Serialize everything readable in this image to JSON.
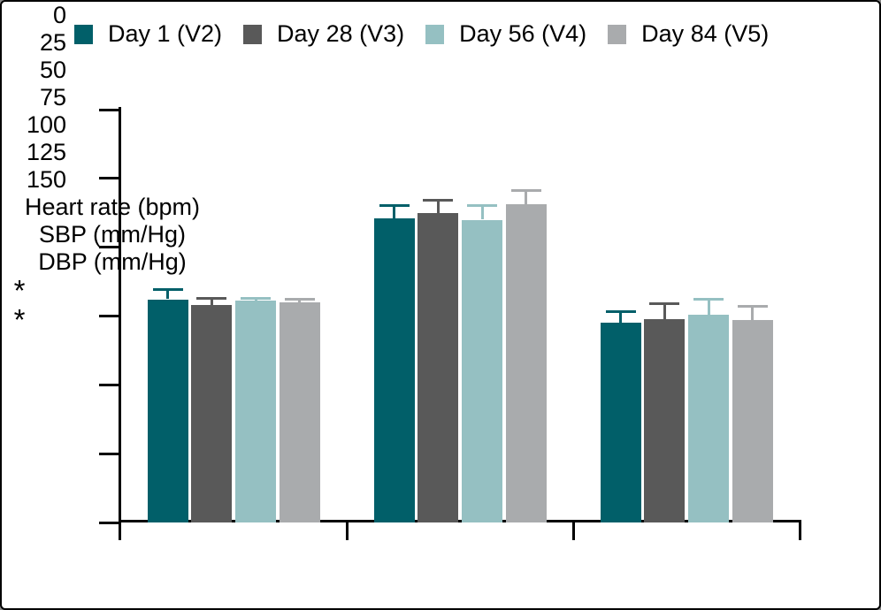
{
  "figure": {
    "background": "#ffffff",
    "border_color": "#000000"
  },
  "chart_data": {
    "type": "bar",
    "title": "",
    "xlabel": "",
    "ylabel": "",
    "categories": [
      "Heart rate (bpm)",
      "SBP (mm/Hg)",
      "DBP (mm/Hg)"
    ],
    "series": [
      {
        "name": "Day 1 (V2)",
        "color": "#015f69",
        "values": [
          81.0,
          110.5,
          72.5
        ],
        "errors_upper": [
          4.0,
          5.0,
          4.5
        ]
      },
      {
        "name": "Day 28 (V3)",
        "color": "#595959",
        "values": [
          79.0,
          112.5,
          74.0
        ],
        "errors_upper": [
          3.0,
          5.0,
          6.0
        ]
      },
      {
        "name": "Day 56 (V4)",
        "color": "#95c0c2",
        "values": [
          80.5,
          110.0,
          75.5
        ],
        "errors_upper": [
          1.5,
          5.5,
          6.0
        ]
      },
      {
        "name": "Day 84 (V5)",
        "color": "#a9abad",
        "values": [
          80.0,
          115.5,
          73.5
        ],
        "errors_upper": [
          1.5,
          5.5,
          5.5
        ]
      }
    ],
    "error_bar_style": "upper_only_with_cap",
    "ylim": [
      0,
      150
    ],
    "yticks": [
      0,
      25,
      50,
      75,
      100,
      125,
      150
    ],
    "grid": false,
    "legend_position": "top",
    "annotations": [
      {
        "text": "*",
        "category_index": 0,
        "series_index": 1
      },
      {
        "text": "*",
        "category_index": 1,
        "series_index": 3
      }
    ],
    "axis_color": "#000000"
  }
}
